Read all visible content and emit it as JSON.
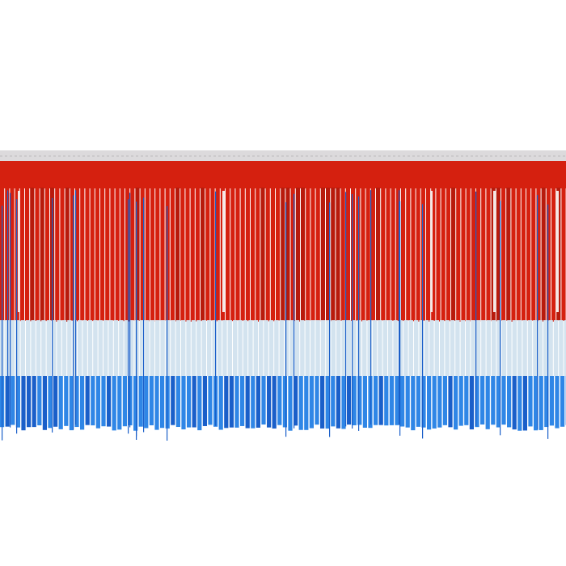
{
  "image": {
    "subject_icon": "tricolor-fringe-icon",
    "colors": {
      "background": "#ffffff",
      "header": "#dcdadc",
      "red": "#d5200f",
      "red_dark": "#b81a0c",
      "white_blue": "#d3e3ef",
      "blue": "#2f86e6",
      "blue_dark": "#1a5fc9",
      "highlight": "#f4e8e6"
    }
  }
}
